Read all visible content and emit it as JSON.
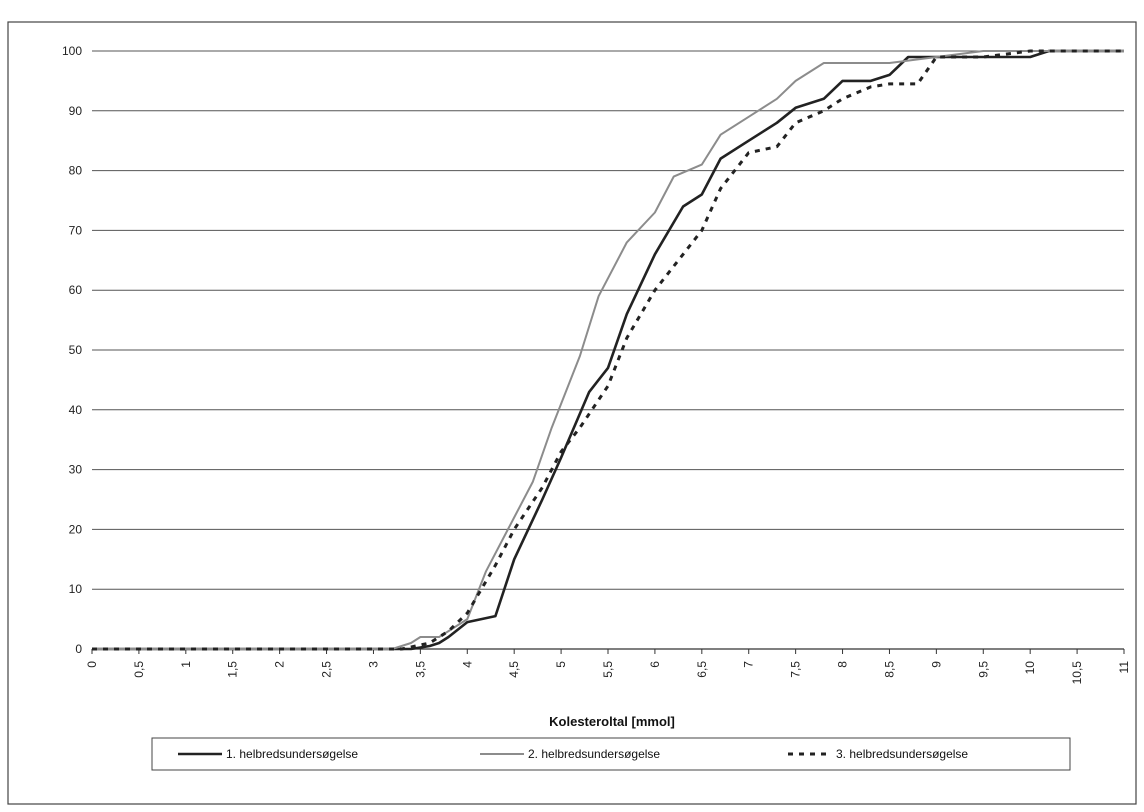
{
  "chart_data": {
    "type": "line",
    "title": "",
    "xlabel": "Kolesteroltal [mmol]",
    "ylabel": "",
    "xlim": [
      0,
      11
    ],
    "ylim": [
      0,
      100
    ],
    "yticks": [
      0,
      10,
      20,
      30,
      40,
      50,
      60,
      70,
      80,
      90,
      100
    ],
    "ytick_labels": [
      "0",
      "10",
      "20",
      "30",
      "40",
      "50",
      "60",
      "70",
      "80",
      "90",
      "100"
    ],
    "xticks": [
      0,
      0.5,
      1,
      1.5,
      2,
      2.5,
      3,
      3.5,
      4,
      4.5,
      5,
      5.5,
      6,
      6.5,
      7,
      7.5,
      8,
      8.5,
      9,
      9.5,
      10,
      10.5,
      11
    ],
    "xtick_labels": [
      "0",
      "0,5",
      "1",
      "1,5",
      "2",
      "2,5",
      "3",
      "3,5",
      "4",
      "4,5",
      "5",
      "5,5",
      "6",
      "6,5",
      "7",
      "7,5",
      "8",
      "8,5",
      "9",
      "9,5",
      "10",
      "10,5",
      "11"
    ],
    "grid": "horizontal",
    "legend_position": "bottom",
    "series": [
      {
        "name": "1. helbredsundersøgelse",
        "color": "#222222",
        "style": "solid",
        "points": [
          [
            0,
            0
          ],
          [
            3.4,
            0
          ],
          [
            3.6,
            0.5
          ],
          [
            3.7,
            1
          ],
          [
            3.8,
            2
          ],
          [
            4.0,
            4.5
          ],
          [
            4.3,
            5.5
          ],
          [
            4.5,
            15
          ],
          [
            4.8,
            25
          ],
          [
            5.0,
            32
          ],
          [
            5.3,
            43
          ],
          [
            5.5,
            47
          ],
          [
            5.7,
            56
          ],
          [
            6.0,
            66
          ],
          [
            6.3,
            74
          ],
          [
            6.5,
            76
          ],
          [
            6.7,
            82
          ],
          [
            7.0,
            85
          ],
          [
            7.3,
            88
          ],
          [
            7.5,
            90.5
          ],
          [
            7.8,
            92
          ],
          [
            8.0,
            95
          ],
          [
            8.3,
            95
          ],
          [
            8.5,
            96
          ],
          [
            8.7,
            99
          ],
          [
            9.0,
            99
          ],
          [
            9.5,
            99
          ],
          [
            10.0,
            99
          ],
          [
            10.2,
            100
          ],
          [
            11.0,
            100
          ]
        ]
      },
      {
        "name": "2. helbredsundersøgelse",
        "color": "#8c8c8c",
        "style": "solid",
        "points": [
          [
            0,
            0
          ],
          [
            3.2,
            0
          ],
          [
            3.4,
            1
          ],
          [
            3.5,
            2
          ],
          [
            3.7,
            2
          ],
          [
            3.8,
            3
          ],
          [
            4.0,
            5
          ],
          [
            4.2,
            13
          ],
          [
            4.5,
            22
          ],
          [
            4.7,
            28
          ],
          [
            4.9,
            37
          ],
          [
            5.2,
            49
          ],
          [
            5.4,
            59
          ],
          [
            5.7,
            68
          ],
          [
            6.0,
            73
          ],
          [
            6.2,
            79
          ],
          [
            6.5,
            81
          ],
          [
            6.7,
            86
          ],
          [
            7.0,
            89
          ],
          [
            7.3,
            92
          ],
          [
            7.5,
            95
          ],
          [
            7.8,
            98
          ],
          [
            8.0,
            98
          ],
          [
            8.5,
            98
          ],
          [
            9.0,
            99
          ],
          [
            9.5,
            100
          ],
          [
            11.0,
            100
          ]
        ]
      },
      {
        "name": "3. helbredsundersøgelse",
        "color": "#222222",
        "style": "dashed",
        "points": [
          [
            0,
            0
          ],
          [
            3.3,
            0
          ],
          [
            3.6,
            1
          ],
          [
            3.8,
            3
          ],
          [
            4.0,
            6
          ],
          [
            4.3,
            14
          ],
          [
            4.5,
            20
          ],
          [
            4.8,
            27
          ],
          [
            5.0,
            33
          ],
          [
            5.2,
            37
          ],
          [
            5.5,
            44
          ],
          [
            5.7,
            52
          ],
          [
            6.0,
            60
          ],
          [
            6.3,
            66
          ],
          [
            6.5,
            70
          ],
          [
            6.7,
            77
          ],
          [
            7.0,
            83
          ],
          [
            7.3,
            84
          ],
          [
            7.5,
            88
          ],
          [
            7.8,
            90
          ],
          [
            8.0,
            92
          ],
          [
            8.3,
            94
          ],
          [
            8.5,
            94.5
          ],
          [
            8.8,
            94.5
          ],
          [
            9.0,
            99
          ],
          [
            9.5,
            99
          ],
          [
            10.0,
            100
          ],
          [
            11.0,
            100
          ]
        ]
      }
    ]
  }
}
